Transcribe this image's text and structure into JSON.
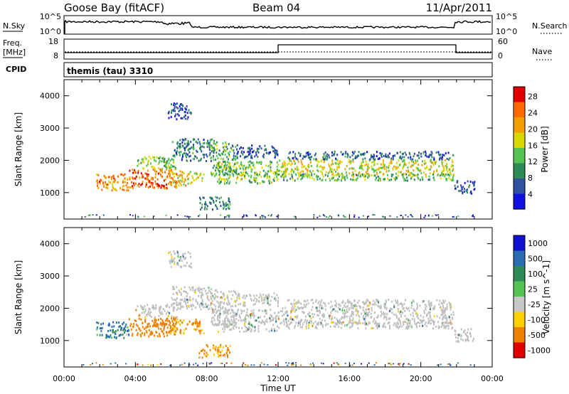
{
  "header": {
    "station": "Goose Bay (fitACF)",
    "beam": "Beam 04",
    "date": "11/Apr/2011"
  },
  "noise_panel": {
    "left_label": "N.Sky",
    "left_ticks": [
      "10^5",
      "10^0"
    ],
    "right_label": "N.Search",
    "right_ticks": [
      "10^5",
      "10^0"
    ]
  },
  "freq_panel": {
    "left_label_1": "Freq.",
    "left_label_2": "[MHz]",
    "left_ticks": [
      "18",
      "8"
    ],
    "right_label": "Nave",
    "right_ticks": [
      "60",
      "0"
    ]
  },
  "cpid_panel": {
    "label": "CPID",
    "value": "themis (tau) 3310"
  },
  "colors": {
    "power_scale": [
      "#1010e0",
      "#3050a0",
      "#2e8b57",
      "#55c455",
      "#d8d800",
      "#f2a000",
      "#ff6a00",
      "#e00000"
    ],
    "velocity_scale": [
      "#1010d0",
      "#2a6db0",
      "#2e8b57",
      "#55c455",
      "#c8c8c8",
      "#ffd000",
      "#f08000",
      "#e00000"
    ],
    "ground_scatter": "#c0c0c0"
  },
  "chart_data": [
    {
      "type": "heatmap",
      "title": "",
      "xlabel": "Time UT",
      "ylabel": "Slant Range [km]",
      "x_ticks": [
        "00:00",
        "04:00",
        "08:00",
        "12:00",
        "16:00",
        "20:00",
        "00:00"
      ],
      "xlim_hours": [
        0,
        24
      ],
      "y_ticks": [
        1000,
        2000,
        3000,
        4000
      ],
      "ylim": [
        180,
        4500
      ],
      "colorbar_label": "Power [dB]",
      "colorbar_ticks": [
        4,
        8,
        12,
        16,
        20,
        24,
        28
      ],
      "colorbar_range": [
        0,
        30
      ],
      "scatter_regions": [
        {
          "t0": 1.8,
          "t1": 3.6,
          "r0": 1100,
          "r1": 1600,
          "value": 22
        },
        {
          "t0": 3.6,
          "t1": 6.3,
          "r0": 1150,
          "r1": 1750,
          "value": 24
        },
        {
          "t0": 4.0,
          "t1": 6.3,
          "r0": 1750,
          "r1": 2150,
          "value": 14
        },
        {
          "t0": 5.8,
          "t1": 7.8,
          "r0": 1250,
          "r1": 1700,
          "value": 18
        },
        {
          "t0": 6.0,
          "t1": 8.4,
          "r0": 2000,
          "r1": 2700,
          "value": 8
        },
        {
          "t0": 8.2,
          "t1": 9.6,
          "r0": 1500,
          "r1": 2600,
          "value": 12
        },
        {
          "t0": 8.5,
          "t1": 12.0,
          "r0": 1300,
          "r1": 2000,
          "value": 14
        },
        {
          "t0": 9.6,
          "t1": 12.0,
          "r0": 2100,
          "r1": 2500,
          "value": 6
        },
        {
          "t0": 12.0,
          "t1": 21.8,
          "r0": 1550,
          "r1": 2050,
          "value": 17
        },
        {
          "t0": 12.0,
          "t1": 21.8,
          "r0": 1400,
          "r1": 1600,
          "value": 12
        },
        {
          "t0": 12.5,
          "t1": 21.8,
          "r0": 2050,
          "r1": 2300,
          "value": 7
        },
        {
          "t0": 7.5,
          "t1": 9.3,
          "r0": 500,
          "r1": 900,
          "value": 10
        },
        {
          "t0": 5.8,
          "t1": 7.1,
          "r0": 3300,
          "r1": 3800,
          "value": 5
        },
        {
          "t0": 21.8,
          "t1": 23.0,
          "r0": 1000,
          "r1": 1400,
          "value": 6
        }
      ]
    },
    {
      "type": "heatmap",
      "title": "",
      "xlabel": "Time UT",
      "ylabel": "Slant Range [km]",
      "x_ticks": [
        "00:00",
        "04:00",
        "08:00",
        "12:00",
        "16:00",
        "20:00",
        "00:00"
      ],
      "xlim_hours": [
        0,
        24
      ],
      "y_ticks": [
        1000,
        2000,
        3000,
        4000
      ],
      "ylim": [
        180,
        4500
      ],
      "colorbar_label": "Velocity [m s^-1]",
      "colorbar_ticks": [
        "1000",
        "500",
        "100",
        "25",
        "-25",
        "-100",
        "-500",
        "-1000"
      ],
      "colorbar_range": [
        -1000,
        1000
      ],
      "scatter_regions": [
        {
          "t0": 1.8,
          "t1": 3.6,
          "r0": 1100,
          "r1": 1600,
          "value": 150
        },
        {
          "t0": 3.6,
          "t1": 6.3,
          "r0": 1150,
          "r1": 1750,
          "value": -250
        },
        {
          "t0": 4.0,
          "t1": 6.3,
          "r0": 1750,
          "r1": 2150,
          "value": 0
        },
        {
          "t0": 5.8,
          "t1": 7.8,
          "r0": 1250,
          "r1": 1700,
          "value": -150
        },
        {
          "t0": 6.0,
          "t1": 8.4,
          "r0": 2000,
          "r1": 2700,
          "value": 0
        },
        {
          "t0": 8.2,
          "t1": 9.6,
          "r0": 1500,
          "r1": 2600,
          "value": 0
        },
        {
          "t0": 8.5,
          "t1": 12.0,
          "r0": 1300,
          "r1": 2000,
          "value": 0
        },
        {
          "t0": 9.6,
          "t1": 12.0,
          "r0": 2100,
          "r1": 2500,
          "value": 0
        },
        {
          "t0": 12.0,
          "t1": 21.8,
          "r0": 1550,
          "r1": 2050,
          "value": 0
        },
        {
          "t0": 12.0,
          "t1": 21.8,
          "r0": 1400,
          "r1": 1600,
          "value": 0
        },
        {
          "t0": 12.5,
          "t1": 21.8,
          "r0": 2050,
          "r1": 2300,
          "value": 0
        },
        {
          "t0": 7.5,
          "t1": 9.3,
          "r0": 500,
          "r1": 900,
          "value": -150
        },
        {
          "t0": 5.8,
          "t1": 7.1,
          "r0": 3300,
          "r1": 3800,
          "value": 0
        },
        {
          "t0": 21.8,
          "t1": 23.0,
          "r0": 1000,
          "r1": 1400,
          "value": 0
        }
      ]
    }
  ]
}
